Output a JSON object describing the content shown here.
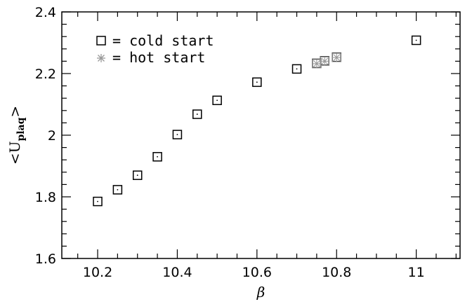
{
  "chart_data": {
    "type": "scatter",
    "title": "",
    "xlabel": "β",
    "ylabel": "<U",
    "ylabel_subscript": "plaq",
    "ylabel_close": ">",
    "xlim": [
      10.11,
      11.11
    ],
    "ylim": [
      1.6,
      2.4
    ],
    "x_ticks": [
      10.2,
      10.4,
      10.6,
      10.8,
      11
    ],
    "x_tick_labels": [
      "10.2",
      "10.4",
      "10.6",
      "10.8",
      "11"
    ],
    "y_ticks": [
      1.6,
      1.8,
      2.0,
      2.2,
      2.4
    ],
    "y_tick_labels": [
      "1.6",
      "1.8",
      "2",
      "2.2",
      "2.4"
    ],
    "grid": false,
    "legend_placement": "top-left",
    "series": [
      {
        "name": "cold start",
        "legend_label": "= cold start",
        "marker": "open-square",
        "color": "#000000",
        "x": [
          10.2,
          10.25,
          10.3,
          10.35,
          10.4,
          10.45,
          10.5,
          10.6,
          10.7,
          10.75,
          10.77,
          10.8,
          11.0
        ],
        "y": [
          1.785,
          1.823,
          1.87,
          1.93,
          2.002,
          2.068,
          2.113,
          2.172,
          2.215,
          2.233,
          2.241,
          2.253,
          2.308
        ]
      },
      {
        "name": "hot start",
        "legend_label": "= hot start",
        "marker": "starred-square",
        "color": "#9a9a9a",
        "x": [
          10.75,
          10.77,
          10.8
        ],
        "y": [
          2.232,
          2.24,
          2.252
        ]
      }
    ]
  }
}
